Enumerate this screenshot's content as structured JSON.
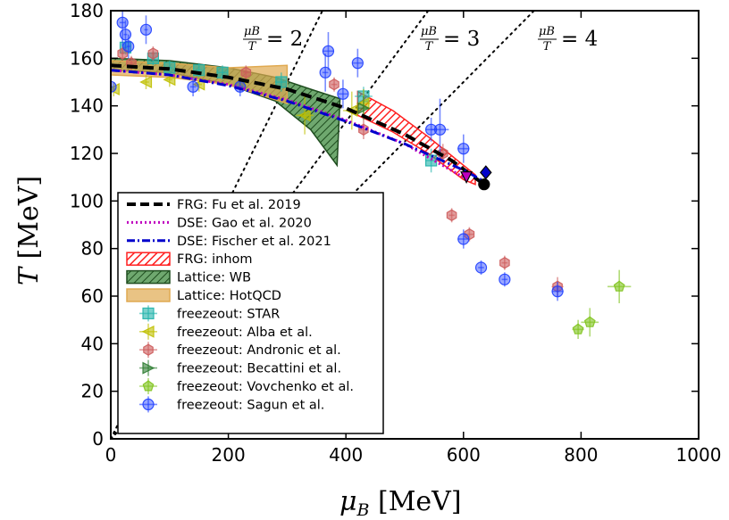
{
  "chart_data": {
    "type": "scatter",
    "xlabel_main": "μ",
    "xlabel_sub": "B",
    "xlabel_unit": " [MeV]",
    "ylabel_main": "T",
    "ylabel_unit": " [MeV]",
    "xlim": [
      0,
      1000
    ],
    "ylim": [
      0,
      180
    ],
    "xticks": [
      "0",
      "200",
      "400",
      "600",
      "800",
      "1000"
    ],
    "yticks": [
      "0",
      "20",
      "40",
      "60",
      "80",
      "100",
      "120",
      "140",
      "160",
      "180"
    ],
    "xtick_values": [
      0,
      200,
      400,
      600,
      800,
      1000
    ],
    "ytick_values": [
      0,
      20,
      40,
      60,
      80,
      100,
      120,
      140,
      160,
      180
    ],
    "legend_position": "lower-left",
    "ratio_lines": [
      {
        "ratio": 2,
        "label_num": "μB",
        "label_den": "T",
        "label_rest": "= 2"
      },
      {
        "ratio": 3,
        "label_num": "μB",
        "label_den": "T",
        "label_rest": "= 3"
      },
      {
        "ratio": 4,
        "label_num": "μB",
        "label_den": "T",
        "label_rest": "= 4"
      }
    ],
    "curves": [
      {
        "name": "FRG: Fu et al. 2019",
        "color": "#000000",
        "style": "dashed",
        "x": [
          0,
          100,
          200,
          300,
          400,
          500,
          580,
          635
        ],
        "y": [
          157,
          155.5,
          152,
          147,
          139,
          128,
          117,
          107
        ]
      },
      {
        "name": "DSE: Gao et al. 2020",
        "color": "#bf00bf",
        "style": "dotted",
        "x": [
          0,
          100,
          200,
          300,
          400,
          500,
          600
        ],
        "y": [
          155,
          153,
          149,
          142.5,
          134,
          124,
          110
        ]
      },
      {
        "name": "DSE: Fischer et al. 2021",
        "color": "#0000cc",
        "style": "dashdot",
        "x": [
          0,
          100,
          200,
          300,
          400,
          500,
          600,
          630
        ],
        "y": [
          155,
          153,
          148.5,
          142,
          133.5,
          124,
          113,
          109
        ]
      }
    ],
    "bands": [
      {
        "name": "FRG: inhom",
        "color": "#ff0000",
        "hatch": "diagonal",
        "upper_x": [
          420,
          480,
          540,
          600,
          620
        ],
        "upper_y": [
          146,
          138,
          127,
          115,
          111
        ],
        "lower_x": [
          420,
          480,
          540,
          600,
          620
        ],
        "lower_y": [
          136,
          129,
          120,
          109,
          107
        ]
      },
      {
        "name": "Lattice: WB",
        "color": "#2e7d32",
        "hatch": "diagonal",
        "upper_x": [
          0,
          100,
          200,
          280,
          340,
          390
        ],
        "upper_y": [
          160,
          159,
          156,
          152,
          147,
          143
        ],
        "lower_x": [
          0,
          100,
          200,
          280,
          340,
          385
        ],
        "lower_y": [
          155,
          154,
          149,
          142,
          130,
          115
        ]
      },
      {
        "name": "Lattice: HotQCD",
        "color": "#e0a950",
        "hatch": "none",
        "upper_x": [
          0,
          100,
          200,
          300
        ],
        "upper_y": [
          159,
          158,
          156,
          157
        ],
        "lower_x": [
          0,
          100,
          200,
          300
        ],
        "lower_y": [
          153,
          152,
          149,
          141
        ]
      }
    ],
    "endpoints": [
      {
        "name": "FRG endpoint",
        "x": 635,
        "y": 107,
        "color": "#000000",
        "marker": "circle"
      },
      {
        "name": "DSE Gao endpoint",
        "x": 605,
        "y": 110,
        "color": "#bf00bf",
        "marker": "triangle-down"
      },
      {
        "name": "DSE Fischer endpoint",
        "x": 638,
        "y": 112,
        "color": "#0000cc",
        "marker": "diamond"
      }
    ],
    "series": [
      {
        "name": "freezeout: STAR",
        "marker": "square",
        "color": "#20b2aa",
        "points": [
          [
            25,
            164.5,
            3,
            3
          ],
          [
            72,
            160,
            3,
            3
          ],
          [
            100,
            156,
            5,
            3
          ],
          [
            150,
            155,
            5,
            3
          ],
          [
            190,
            154,
            8,
            3
          ],
          [
            290,
            150,
            10,
            4
          ],
          [
            430,
            144,
            15,
            4
          ],
          [
            545,
            117,
            10,
            5
          ]
        ]
      },
      {
        "name": "freezeout: Alba et al.",
        "marker": "triangle-left",
        "color": "#bfbf00",
        "points": [
          [
            5,
            147,
            3,
            3
          ],
          [
            60,
            150,
            5,
            3
          ],
          [
            100,
            151,
            5,
            3
          ],
          [
            150,
            149,
            5,
            3
          ],
          [
            220,
            149,
            5,
            3
          ],
          [
            330,
            136,
            15,
            8
          ],
          [
            410,
            138,
            15,
            8
          ],
          [
            430,
            141,
            12,
            6
          ]
        ]
      },
      {
        "name": "freezeout: Andronic et al.",
        "marker": "hexagon",
        "color": "#cd5c5c",
        "points": [
          [
            20,
            162,
            3,
            3
          ],
          [
            35,
            158,
            3,
            3
          ],
          [
            72,
            162,
            3,
            3
          ],
          [
            230,
            154,
            5,
            3
          ],
          [
            380,
            149,
            5,
            3
          ],
          [
            430,
            130,
            8,
            4
          ],
          [
            565,
            120,
            10,
            4
          ],
          [
            580,
            94,
            5,
            3
          ],
          [
            610,
            86,
            8,
            3
          ],
          [
            670,
            74,
            5,
            3
          ],
          [
            760,
            64,
            10,
            4
          ]
        ]
      },
      {
        "name": "freezeout: Becattini et al.",
        "marker": "triangle-right",
        "color": "#2e7d32",
        "points": [
          [
            430,
            139,
            10,
            5
          ]
        ]
      },
      {
        "name": "freezeout: Vovchenko et al.",
        "marker": "pentagon",
        "color": "#7fc31c",
        "points": [
          [
            795,
            46,
            10,
            4
          ],
          [
            815,
            49,
            15,
            6
          ],
          [
            865,
            64,
            20,
            7
          ]
        ]
      },
      {
        "name": "freezeout: Sagun et al.",
        "marker": "circle",
        "color": "#1f3fff",
        "points": [
          [
            0,
            148,
            3,
            3
          ],
          [
            20,
            175,
            5,
            10
          ],
          [
            25,
            170,
            3,
            6
          ],
          [
            30,
            165,
            3,
            5
          ],
          [
            60,
            172,
            3,
            6
          ],
          [
            140,
            148,
            5,
            4
          ],
          [
            220,
            148,
            5,
            4
          ],
          [
            365,
            154,
            5,
            8
          ],
          [
            370,
            163,
            10,
            8
          ],
          [
            395,
            145,
            8,
            6
          ],
          [
            420,
            158,
            8,
            6
          ],
          [
            545,
            130,
            10,
            5
          ],
          [
            560,
            130,
            15,
            13
          ],
          [
            600,
            122,
            10,
            6
          ],
          [
            600,
            84,
            10,
            4
          ],
          [
            630,
            72,
            5,
            3
          ],
          [
            670,
            67,
            5,
            3
          ],
          [
            760,
            62,
            10,
            4
          ]
        ]
      }
    ]
  }
}
